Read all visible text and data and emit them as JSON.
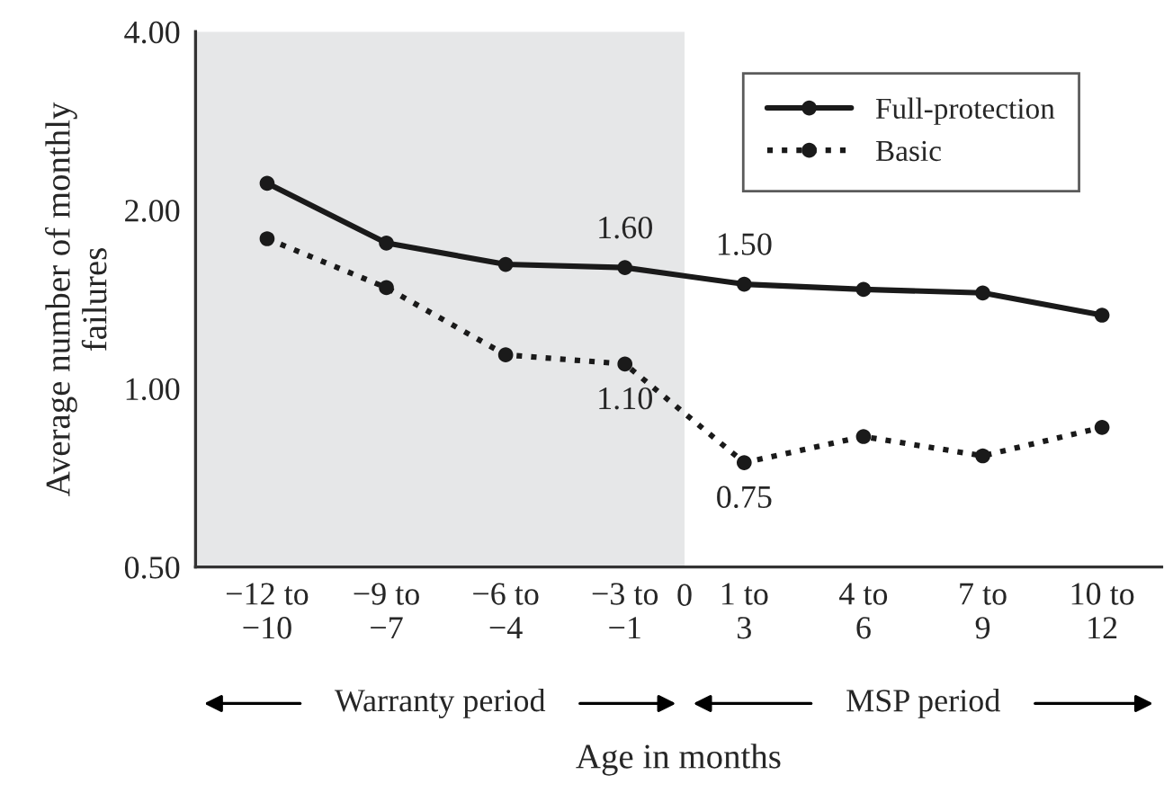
{
  "chart_data": {
    "type": "line",
    "xlabel": "Age in months",
    "ylabel": "Average number of monthly\nfailures",
    "categories": [
      "−12 to\n−10",
      "−9 to\n−7",
      "−6 to\n−4",
      "−3 to\n−1",
      "1 to\n3",
      "4 to\n6",
      "7 to\n9",
      "10 to\n12"
    ],
    "series": [
      {
        "name": "Full-protection",
        "color": "#1a1a1a",
        "marker": "circle",
        "line_style": "solid",
        "values": [
          2.22,
          1.76,
          1.62,
          1.6,
          1.5,
          1.47,
          1.45,
          1.33
        ]
      },
      {
        "name": "Basic",
        "color": "#1a1a1a",
        "marker": "circle",
        "line_style": "dotted",
        "values": [
          1.79,
          1.48,
          1.14,
          1.1,
          0.75,
          0.83,
          0.77,
          0.86
        ]
      }
    ],
    "log": "y",
    "ylim": [
      0.5,
      4.0
    ],
    "yticks": [
      {
        "value": 0.5,
        "label": "0.50"
      },
      {
        "value": 1.0,
        "label": "1.00"
      },
      {
        "value": 2.0,
        "label": "2.00"
      },
      {
        "value": 4.0,
        "label": "4.00"
      }
    ],
    "bands": [
      {
        "axis": "x",
        "from": "−12 to\n−10",
        "to": "−3 to\n−1",
        "color": "#e6e7e8"
      }
    ],
    "annotations": [
      {
        "text": "1.60",
        "x": "−3 to\n−1",
        "y": 1.6
      },
      {
        "text": "1.50",
        "x": "1 to\n3",
        "y": 1.5
      },
      {
        "text": "1.10",
        "x": "−3 to\n−1",
        "y": 1.1
      },
      {
        "text": "0.75",
        "x": "1 to\n3",
        "y": 0.75
      },
      "0",
      "Warranty period",
      "MSP period"
    ],
    "grid": false,
    "legend": "top right"
  }
}
